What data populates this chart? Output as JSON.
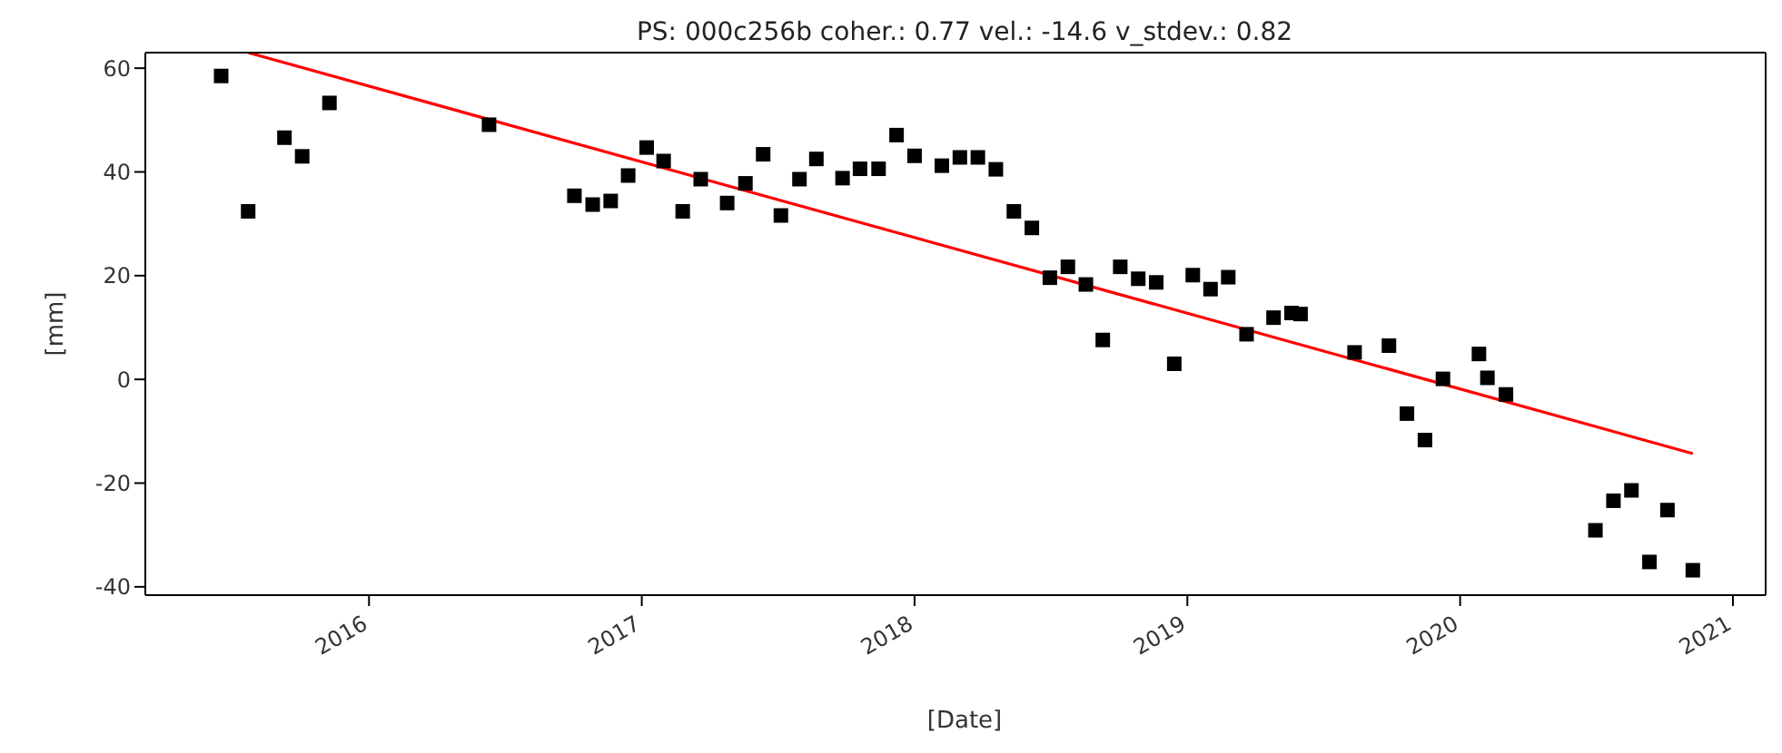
{
  "chart_data": {
    "type": "scatter",
    "title": "PS: 000c256b coher.: 0.77 vel.: -14.6 v_stdev.: 0.82",
    "xlabel": "[Date]",
    "ylabel": "[mm]",
    "xlim": [
      2015.18,
      2021.12
    ],
    "xticks": [
      2016,
      2017,
      2018,
      2019,
      2020,
      2021
    ],
    "ylim": [
      -41.6,
      63
    ],
    "yticks": [
      -40,
      -20,
      0,
      20,
      40,
      60
    ],
    "grid": false,
    "legend": false,
    "marker": "square",
    "series": [
      {
        "color": "#000000",
        "x": [
          2015.458,
          2015.557,
          2015.69,
          2015.755,
          2015.855,
          2016.44,
          2016.753,
          2016.82,
          2016.886,
          2016.95,
          2017.018,
          2017.08,
          2017.15,
          2017.216,
          2017.313,
          2017.38,
          2017.445,
          2017.51,
          2017.578,
          2017.64,
          2017.736,
          2017.8,
          2017.868,
          2017.934,
          2018.0,
          2018.1,
          2018.166,
          2018.232,
          2018.298,
          2018.364,
          2018.43,
          2018.496,
          2018.562,
          2018.628,
          2018.69,
          2018.754,
          2018.82,
          2018.886,
          2018.952,
          2019.02,
          2019.085,
          2019.15,
          2019.217,
          2019.316,
          2019.382,
          2019.415,
          2019.613,
          2019.739,
          2019.805,
          2019.871,
          2019.937,
          2020.069,
          2020.1,
          2020.168,
          2020.496,
          2020.562,
          2020.628,
          2020.694,
          2020.76,
          2020.853
        ],
        "values": [
          58.5,
          32.4,
          46.6,
          43.0,
          53.3,
          49.1,
          35.4,
          33.7,
          34.4,
          39.3,
          44.7,
          42.1,
          32.4,
          38.6,
          34.0,
          37.8,
          43.4,
          31.6,
          38.6,
          42.5,
          38.8,
          40.6,
          40.6,
          47.1,
          43.1,
          41.2,
          42.8,
          42.8,
          40.5,
          32.4,
          29.2,
          19.6,
          21.7,
          18.3,
          7.6,
          21.7,
          19.4,
          18.7,
          3.0,
          20.1,
          17.4,
          19.7,
          8.7,
          11.9,
          12.8,
          12.6,
          5.2,
          6.5,
          -6.6,
          -11.7,
          0.1,
          4.9,
          0.3,
          -2.9,
          -29.1,
          -23.4,
          -21.4,
          -35.2,
          -25.2,
          -36.8
        ]
      },
      {
        "type": "line",
        "color": "#ff0000",
        "line_style": "solid",
        "marker": "none",
        "x": [
          2015.557,
          2020.853
        ],
        "values": [
          63.0,
          -14.3
        ]
      }
    ]
  }
}
